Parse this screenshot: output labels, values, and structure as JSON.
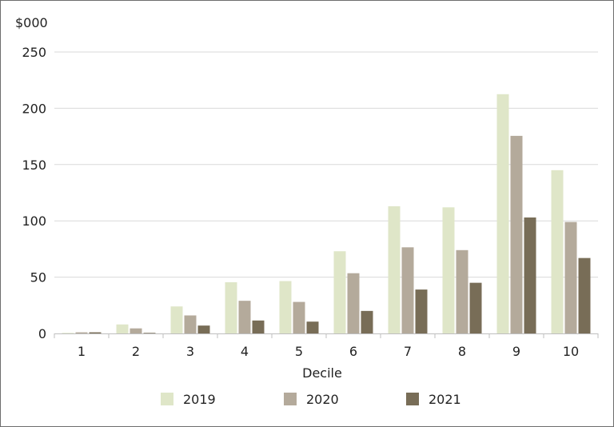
{
  "chart_data": {
    "type": "bar",
    "y_unit_label": "$000",
    "xlabel": "Decile",
    "ylabel": "",
    "ylim": [
      0,
      250
    ],
    "y_ticks": [
      0,
      50,
      100,
      150,
      200,
      250
    ],
    "grid": true,
    "legend_position": "bottom",
    "categories": [
      "1",
      "2",
      "3",
      "4",
      "5",
      "6",
      "7",
      "8",
      "9",
      "10"
    ],
    "series": [
      {
        "name": "2019",
        "color": "#dfe6c8",
        "values": [
          0.5,
          8,
          24,
          45.5,
          46.5,
          73,
          113,
          112,
          212.5,
          145
        ]
      },
      {
        "name": "2020",
        "color": "#b4aa9b",
        "values": [
          1,
          4.5,
          16,
          29,
          28,
          53.5,
          76.5,
          74,
          175.5,
          99
        ]
      },
      {
        "name": "2021",
        "color": "#786d57",
        "values": [
          1,
          0.5,
          7,
          11.5,
          10.5,
          20,
          39,
          45,
          103,
          67
        ]
      }
    ]
  }
}
